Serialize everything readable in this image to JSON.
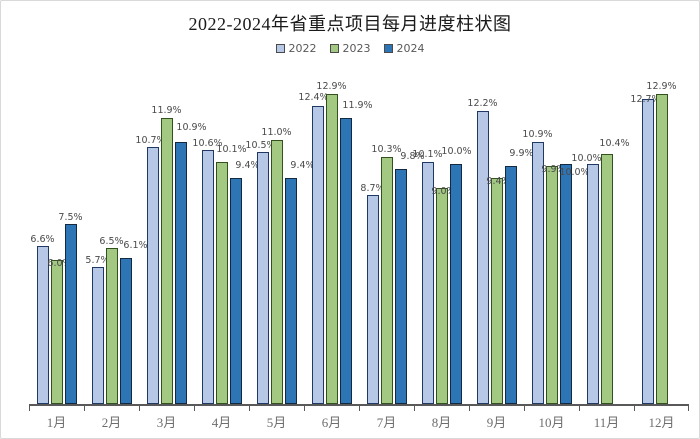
{
  "frame": {
    "background": "#ffffff",
    "border_color": "#d9d9d9"
  },
  "chart_data": {
    "type": "bar",
    "title": "2022-2024年省重点项目每月进度柱状图",
    "unit": "%",
    "value_label_suffix": "%",
    "categories": [
      "1月",
      "2月",
      "3月",
      "4月",
      "5月",
      "6月",
      "7月",
      "8月",
      "9月",
      "10月",
      "11月",
      "12月"
    ],
    "series": [
      {
        "name": "2022",
        "fill": "#b7c8e6",
        "border": "#1f3864",
        "values": [
          6.6,
          5.7,
          10.7,
          10.6,
          10.5,
          12.4,
          8.7,
          10.1,
          12.2,
          10.9,
          10.0,
          12.7
        ],
        "label_offsets": [
          [
            0,
            2
          ],
          [
            0,
            2
          ],
          [
            -2,
            2
          ],
          [
            0,
            2
          ],
          [
            -2,
            2
          ],
          [
            -4,
            4
          ],
          [
            0,
            2
          ],
          [
            0,
            3
          ],
          [
            0,
            3
          ],
          [
            0,
            3
          ],
          [
            -6,
            1
          ],
          [
            -2,
            -5
          ]
        ]
      },
      {
        "name": "2023",
        "fill": "#a2c882",
        "border": "#33511f",
        "values": [
          6.0,
          6.5,
          11.9,
          10.1,
          11.0,
          12.9,
          10.3,
          9.0,
          9.4,
          9.9,
          10.4,
          12.9
        ],
        "label_offsets": [
          [
            3,
            -8
          ],
          [
            0,
            2
          ],
          [
            0,
            3
          ],
          [
            10,
            8
          ],
          [
            0,
            3
          ],
          [
            0,
            3
          ],
          [
            0,
            3
          ],
          [
            2,
            -8
          ],
          [
            2,
            -8
          ],
          [
            2,
            -8
          ],
          [
            8,
            6
          ],
          [
            0,
            3
          ]
        ]
      },
      {
        "name": "2024",
        "fill": "#2e75b5",
        "border": "#12293f",
        "values": [
          7.5,
          6.1,
          10.9,
          9.4,
          9.4,
          11.9,
          9.8,
          10.0,
          9.9,
          10.0,
          null,
          null
        ],
        "label_offsets": [
          [
            0,
            2
          ],
          [
            10,
            8
          ],
          [
            11,
            10
          ],
          [
            12,
            8
          ],
          [
            12,
            8
          ],
          [
            12,
            8
          ],
          [
            12,
            8
          ],
          [
            1,
            8
          ],
          [
            11,
            8
          ],
          [
            9,
            -13
          ],
          [
            0,
            0
          ],
          [
            0,
            0
          ]
        ]
      }
    ],
    "ylim": [
      0,
      14
    ],
    "grid": false,
    "legend_position": "top",
    "axis_color": "#595959",
    "value_label_color": "#4a4a4a",
    "tick_label_color": "#6e6e6e"
  }
}
